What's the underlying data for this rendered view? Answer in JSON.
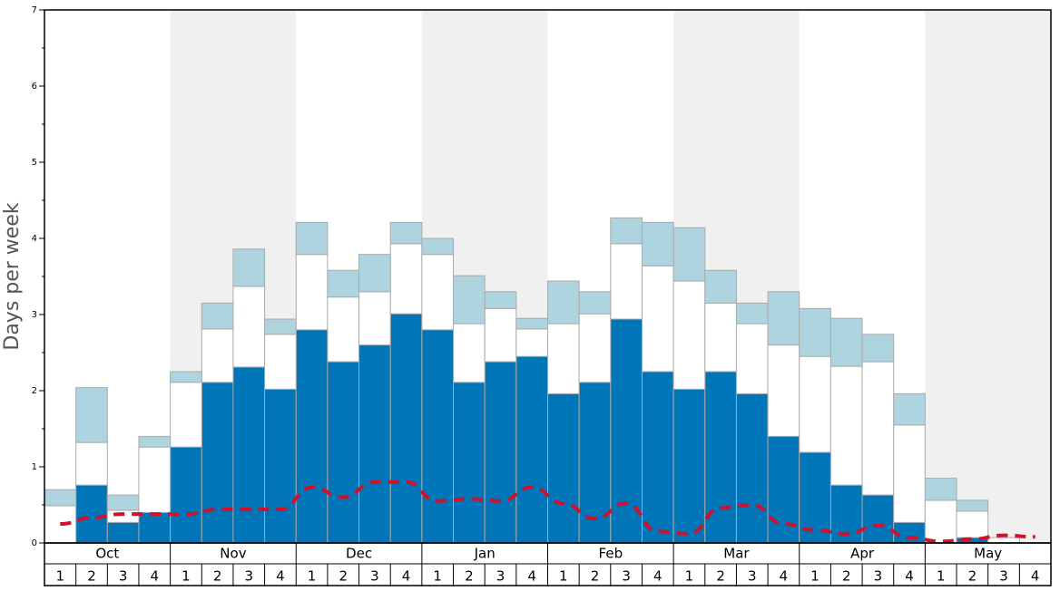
{
  "chart_data": {
    "type": "bar",
    "y_label": "Days per week",
    "months": [
      "Oct",
      "Nov",
      "Dec",
      "Jan",
      "Feb",
      "Mar",
      "Apr",
      "May"
    ],
    "shaded_month_color": "#f0f0f0",
    "categories": [
      "1",
      "2",
      "3",
      "4",
      "1",
      "2",
      "3",
      "4",
      "1",
      "2",
      "3",
      "4",
      "1",
      "2",
      "3",
      "4",
      "1",
      "2",
      "3",
      "4",
      "1",
      "2",
      "3",
      "4",
      "1",
      "2",
      "3",
      "4",
      "1",
      "2",
      "3",
      "4"
    ],
    "series": [
      {
        "color": "#0075b8",
        "values": [
          0,
          0.76,
          0.27,
          0.4,
          1.26,
          2.11,
          2.31,
          2.02,
          2.8,
          2.38,
          2.6,
          3.01,
          2.8,
          2.11,
          2.38,
          2.45,
          1.96,
          2.11,
          2.94,
          2.25,
          2.02,
          2.25,
          1.96,
          1.4,
          1.19,
          0.76,
          0.63,
          0.27,
          0,
          0.07,
          0,
          0
        ]
      },
      {
        "color": "#ffffff",
        "values": [
          0.49,
          0.56,
          0.16,
          0.86,
          0.85,
          0.7,
          1.06,
          0.72,
          0.99,
          0.85,
          0.7,
          0.92,
          0.99,
          0.77,
          0.7,
          0.36,
          0.92,
          0.9,
          0.99,
          1.39,
          1.42,
          0.9,
          0.92,
          1.2,
          1.26,
          1.56,
          1.75,
          1.28,
          0.56,
          0.35,
          0.07,
          0
        ]
      },
      {
        "color": "#aed4e0",
        "values": [
          0.21,
          0.72,
          0.2,
          0.14,
          0.14,
          0.34,
          0.49,
          0.2,
          0.42,
          0.35,
          0.49,
          0.28,
          0.21,
          0.63,
          0.22,
          0.14,
          0.56,
          0.29,
          0.34,
          0.57,
          0.7,
          0.43,
          0.27,
          0.7,
          0.63,
          0.63,
          0.36,
          0.41,
          0.29,
          0.14,
          0,
          0
        ]
      },
      {
        "type": "line",
        "color": "#d0112b",
        "values": [
          0.25,
          0.33,
          0.38,
          0.38,
          0.38,
          0.44,
          0.44,
          0.44,
          0.73,
          0.6,
          0.8,
          0.8,
          0.55,
          0.58,
          0.55,
          0.73,
          0.52,
          0.32,
          0.52,
          0.15,
          0.12,
          0.46,
          0.5,
          0.25,
          0.17,
          0.12,
          0.23,
          0.07,
          0.02,
          0.05,
          0.1,
          0.08
        ]
      }
    ],
    "ylim": [
      0,
      7
    ],
    "yticks": [
      0,
      1,
      2,
      3,
      4,
      5,
      6,
      7
    ],
    "yminor_ticks": [
      0.5,
      1.5,
      2.5,
      3.5,
      4.5,
      5.5,
      6.5
    ]
  }
}
